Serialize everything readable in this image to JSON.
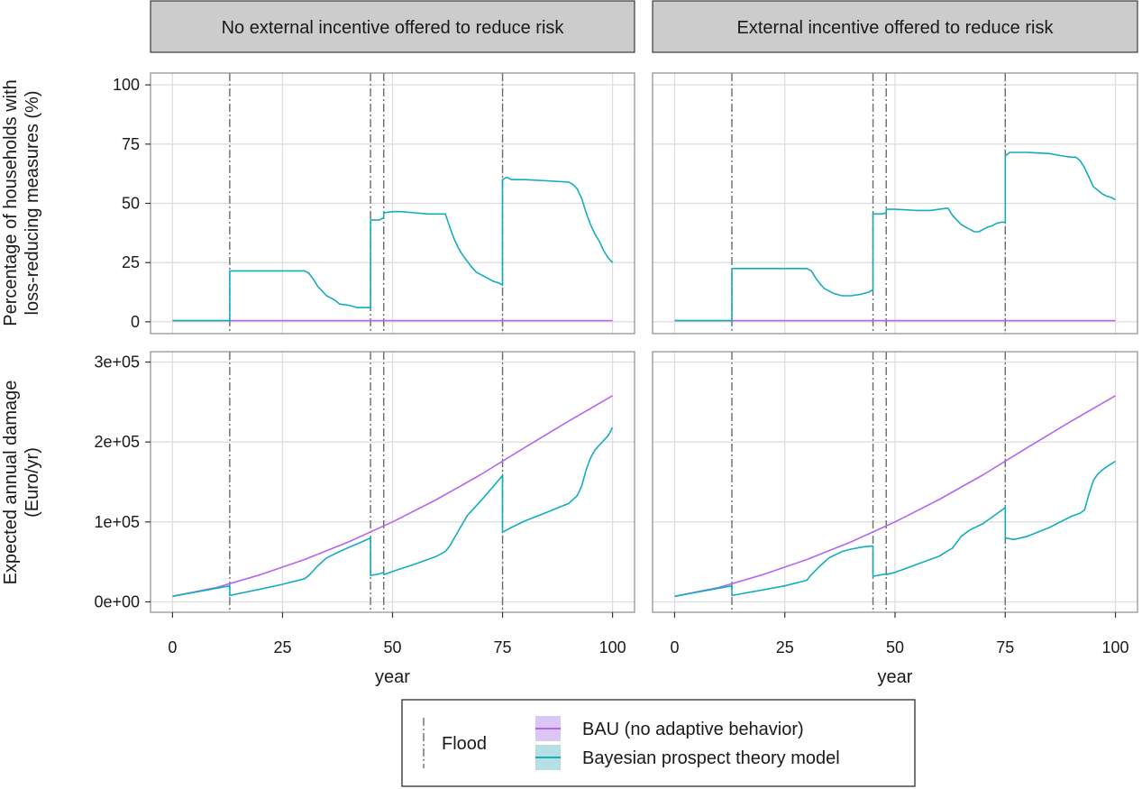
{
  "facets": {
    "columns": [
      "No external incentive offered to reduce risk",
      "External incentive offered to reduce risk"
    ]
  },
  "axes": {
    "xlabel": "year",
    "x_ticks": [
      "0",
      "25",
      "50",
      "75",
      "100"
    ],
    "xlim": [
      -5,
      105
    ],
    "top_ylabel_line1": "Percentage of households with",
    "top_ylabel_line2": "loss-reducing measures (%)",
    "top_y_ticks": [
      "0",
      "25",
      "50",
      "75",
      "100"
    ],
    "top_ylim": [
      -5,
      105
    ],
    "bottom_ylabel_line1": "Expected annual damage",
    "bottom_ylabel_line2": "(Euro/yr)",
    "bottom_y_ticks": [
      "0e+00",
      "1e+05",
      "2e+05",
      "3e+05"
    ],
    "bottom_ylim": [
      -13000,
      313000
    ]
  },
  "legend": {
    "flood_label": "Flood",
    "bau_label": "BAU (no adaptive behavior)",
    "bpt_label": "Bayesian prospect theory model"
  },
  "colors": {
    "bau": "#b266f2",
    "bau_fill": "#dcc6f5",
    "bpt": "#13adbd",
    "bpt_fill": "#b5dfe3",
    "flood": "#6b6b6b",
    "grid": "#dedede",
    "panel_border": "#8c8c8c",
    "strip_fill": "#cccccc"
  },
  "chart_data": [
    {
      "type": "line",
      "panel": "No external incentive offered to reduce risk / Percentage of households with loss-reducing measures (%)",
      "flood_years": [
        13,
        45,
        48,
        75
      ],
      "series": [
        {
          "name": "BAU (no adaptive behavior)",
          "x": [
            0,
            100
          ],
          "y": [
            0.5,
            0.5
          ]
        },
        {
          "name": "Bayesian prospect theory model",
          "x": [
            0,
            13,
            13,
            30,
            31,
            32,
            33,
            34,
            35,
            36,
            37,
            38,
            40,
            42,
            45,
            45,
            47,
            48,
            48,
            50,
            52,
            55,
            58,
            60,
            62,
            63,
            64,
            65,
            66,
            67,
            68,
            69,
            70,
            71,
            72,
            73,
            74,
            75,
            75,
            76,
            77,
            80,
            85,
            90,
            91,
            92,
            93,
            94,
            95,
            96,
            97,
            98,
            99,
            100
          ],
          "y": [
            0.5,
            0.5,
            21.5,
            21.5,
            20.5,
            18,
            15,
            13,
            11,
            10,
            9,
            7.5,
            7,
            6,
            6,
            43,
            43,
            44,
            46,
            46.5,
            46.5,
            46,
            45.5,
            45.5,
            45.5,
            40,
            35,
            31,
            28,
            25.5,
            23,
            21,
            20,
            19,
            18,
            17,
            16.5,
            15.5,
            60,
            61,
            60,
            60,
            59.5,
            59,
            58,
            56,
            52,
            46,
            41,
            37,
            34,
            30,
            27,
            25
          ]
        }
      ]
    },
    {
      "type": "line",
      "panel": "External incentive offered to reduce risk / Percentage of households with loss-reducing measures (%)",
      "flood_years": [
        13,
        45,
        48,
        75
      ],
      "series": [
        {
          "name": "BAU (no adaptive behavior)",
          "x": [
            0,
            100
          ],
          "y": [
            0.5,
            0.5
          ]
        },
        {
          "name": "Bayesian prospect theory model",
          "x": [
            0,
            13,
            13,
            30,
            31,
            32,
            33,
            34,
            35,
            36,
            37,
            38,
            40,
            42,
            44,
            45,
            45,
            47,
            48,
            48,
            50,
            55,
            58,
            60,
            62,
            63,
            64,
            65,
            66,
            67,
            68,
            69,
            70,
            71,
            72,
            73,
            74,
            75,
            75,
            76,
            78,
            80,
            85,
            88,
            90,
            91,
            92,
            93,
            94,
            95,
            96,
            97,
            98,
            99,
            100
          ],
          "y": [
            0.5,
            0.5,
            22.5,
            22.5,
            21.5,
            18.5,
            16,
            14,
            13,
            12,
            11.5,
            11,
            11,
            11.5,
            12.5,
            13.5,
            45.5,
            45.5,
            46,
            47.5,
            47.5,
            47,
            47,
            47.5,
            48,
            45,
            43,
            41,
            40,
            39,
            38,
            38,
            39,
            40,
            40.5,
            41.5,
            42,
            42,
            70,
            71.5,
            71.5,
            71.5,
            71,
            70,
            69.5,
            69.5,
            68,
            65,
            61,
            57,
            55.5,
            54,
            53,
            52.5,
            51.5
          ]
        }
      ]
    },
    {
      "type": "line",
      "panel": "No external incentive offered to reduce risk / Expected annual damage (Euro/yr)",
      "flood_years": [
        13,
        45,
        48,
        75
      ],
      "series": [
        {
          "name": "BAU (no adaptive behavior)",
          "x": [
            0,
            10,
            20,
            30,
            40,
            50,
            60,
            70,
            80,
            90,
            100
          ],
          "y": [
            7000,
            18000,
            34000,
            53000,
            75000,
            100000,
            128000,
            159000,
            193000,
            226000,
            258000
          ]
        },
        {
          "name": "Bayesian prospect theory model",
          "x": [
            0,
            13,
            13,
            20,
            25,
            30,
            31,
            33,
            35,
            38,
            40,
            43,
            45,
            45,
            47,
            48,
            48,
            50,
            55,
            60,
            62,
            63,
            65,
            67,
            70,
            73,
            75,
            75,
            77,
            80,
            85,
            90,
            92,
            93,
            94,
            95,
            96,
            97,
            98,
            99,
            100
          ],
          "y": [
            7000,
            20000,
            8000,
            16000,
            22000,
            29000,
            33000,
            45000,
            55000,
            63000,
            68000,
            75000,
            80000,
            33000,
            35000,
            37000,
            34000,
            38000,
            47000,
            57000,
            63000,
            70000,
            89000,
            108000,
            126000,
            145000,
            158000,
            87000,
            93000,
            101000,
            112000,
            123000,
            133000,
            145000,
            165000,
            180000,
            190000,
            196000,
            202000,
            208000,
            218000
          ]
        }
      ]
    },
    {
      "type": "line",
      "panel": "External incentive offered to reduce risk / Expected annual damage (Euro/yr)",
      "flood_years": [
        13,
        45,
        48,
        75
      ],
      "series": [
        {
          "name": "BAU (no adaptive behavior)",
          "x": [
            0,
            10,
            20,
            30,
            40,
            50,
            60,
            70,
            80,
            90,
            100
          ],
          "y": [
            7000,
            18000,
            34000,
            53000,
            75000,
            100000,
            128000,
            159000,
            193000,
            226000,
            258000
          ]
        },
        {
          "name": "Bayesian prospect theory model",
          "x": [
            0,
            13,
            13,
            20,
            25,
            30,
            31,
            33,
            35,
            38,
            40,
            43,
            45,
            45,
            47,
            48,
            48,
            50,
            55,
            60,
            62,
            63,
            65,
            67,
            70,
            73,
            75,
            75,
            77,
            80,
            85,
            90,
            92,
            93,
            94,
            95,
            96,
            97,
            98,
            100
          ],
          "y": [
            7000,
            20000,
            8000,
            15000,
            20000,
            27000,
            34000,
            45000,
            55000,
            63000,
            66000,
            69000,
            70000,
            32000,
            34000,
            35000,
            34000,
            37000,
            47000,
            57000,
            64000,
            67000,
            82000,
            90000,
            98000,
            110000,
            118000,
            80000,
            78000,
            82000,
            93000,
            107000,
            111000,
            115000,
            135000,
            152000,
            160000,
            165000,
            169000,
            176000
          ]
        }
      ]
    }
  ]
}
